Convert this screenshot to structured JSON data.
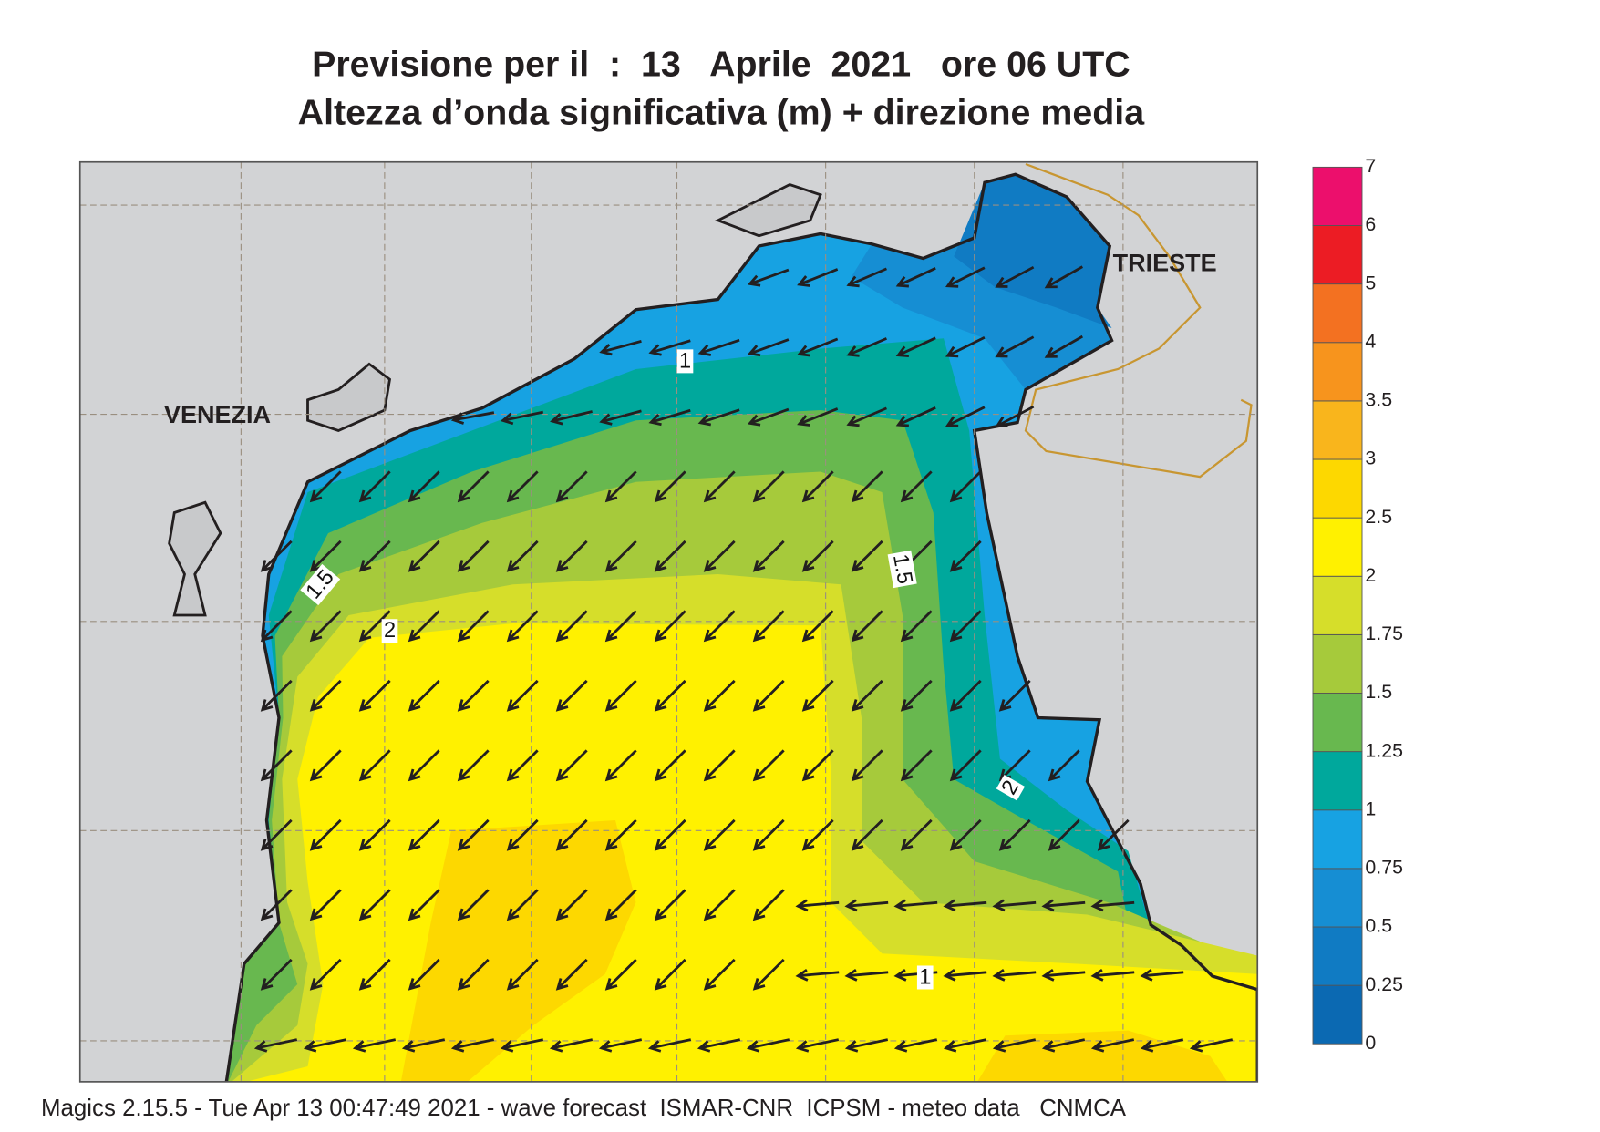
{
  "header": {
    "title_line1": "Previsione per il  :  13   Aprile  2021   ore 06 UTC",
    "title_line2": "Altezza d’onda significativa (m) + direzione media"
  },
  "map": {
    "place_labels": [
      "VENEZIA",
      "TRIESTE"
    ],
    "contour_labels": [
      1,
      1.5,
      2,
      1.5,
      2,
      1
    ]
  },
  "colorbar": {
    "levels": [
      0,
      0.25,
      0.5,
      0.75,
      1,
      1.25,
      1.5,
      1.75,
      2,
      2.5,
      3,
      3.5,
      4,
      5,
      6,
      7
    ],
    "colors": [
      "#0b69b2",
      "#107bc3",
      "#168ed3",
      "#17a2e2",
      "#00a89c",
      "#68b84f",
      "#a6ca3b",
      "#d6de2a",
      "#fff100",
      "#fdd800",
      "#f9b51c",
      "#f7941d",
      "#f37121",
      "#ec1c24",
      "#ec0f6c"
    ]
  },
  "footer": "Magics 2.15.5 - Tue Apr 13 00:47:49 2021 - wave forecast  ISMAR-CNR  ICPSM - meteo data   CNMCA"
}
